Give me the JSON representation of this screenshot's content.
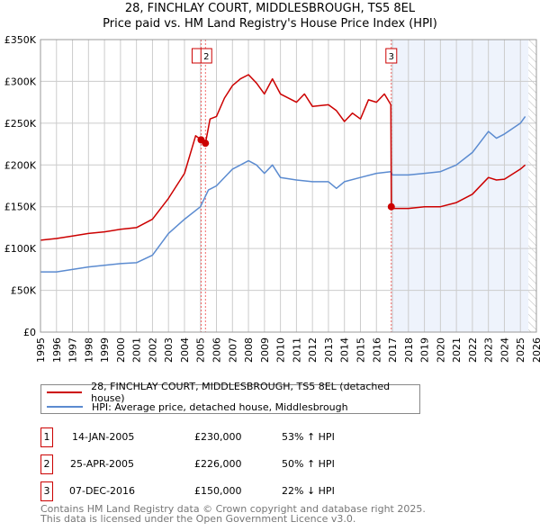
{
  "title_line1": "28, FINCHLAY COURT, MIDDLESBROUGH, TS5 8EL",
  "title_line2": "Price paid vs. HM Land Registry's House Price Index (HPI)",
  "chart_data": {
    "type": "line",
    "xlim": [
      1995,
      2026
    ],
    "ylim": [
      0,
      350000
    ],
    "yticks": [
      0,
      50000,
      100000,
      150000,
      200000,
      250000,
      300000,
      350000
    ],
    "ytick_labels": [
      "£0",
      "£50K",
      "£100K",
      "£150K",
      "£200K",
      "£250K",
      "£300K",
      "£350K"
    ],
    "xticks": [
      1995,
      1996,
      1997,
      1998,
      1999,
      2000,
      2001,
      2002,
      2003,
      2004,
      2005,
      2006,
      2007,
      2008,
      2009,
      2010,
      2011,
      2012,
      2013,
      2014,
      2015,
      2016,
      2017,
      2018,
      2019,
      2020,
      2021,
      2022,
      2023,
      2024,
      2025,
      2026
    ],
    "grid": true,
    "colors": {
      "property": "#cc0000",
      "hpi": "#5b8bd0",
      "shade": "#eef3fc"
    },
    "shaded_from": 2016.93,
    "hatched_from": 2025.5,
    "series": [
      {
        "name": "28, FINCHLAY COURT, MIDDLESBROUGH, TS5 8EL (detached house)",
        "key": "property",
        "x": [
          1995,
          1996,
          1997,
          1998,
          1999,
          2000,
          2001,
          2002,
          2003,
          2004,
          2004.7,
          2005.04,
          2005.31,
          2005.6,
          2006,
          2006.5,
          2007,
          2007.5,
          2008,
          2008.5,
          2009,
          2009.5,
          2010,
          2011,
          2011.5,
          2012,
          2013,
          2013.5,
          2014,
          2014.5,
          2015,
          2015.5,
          2016,
          2016.5,
          2016.9,
          2016.93,
          2017,
          2018,
          2019,
          2020,
          2021,
          2022,
          2023,
          2023.5,
          2024,
          2025,
          2025.3
        ],
        "y": [
          110000,
          112000,
          115000,
          118000,
          120000,
          123000,
          125000,
          135000,
          160000,
          190000,
          235000,
          230000,
          226000,
          255000,
          258000,
          280000,
          295000,
          303000,
          308000,
          298000,
          285000,
          303000,
          285000,
          275000,
          285000,
          270000,
          272000,
          265000,
          252000,
          262000,
          255000,
          278000,
          275000,
          285000,
          272000,
          150000,
          148000,
          148000,
          150000,
          150000,
          155000,
          165000,
          185000,
          182000,
          183000,
          195000,
          200000
        ]
      },
      {
        "name": "HPI: Average price, detached house, Middlesbrough",
        "key": "hpi",
        "x": [
          1995,
          1996,
          1997,
          1998,
          1999,
          2000,
          2001,
          2002,
          2003,
          2004,
          2005,
          2005.5,
          2006,
          2007,
          2007.5,
          2008,
          2008.5,
          2009,
          2009.5,
          2010,
          2011,
          2012,
          2013,
          2013.5,
          2014,
          2015,
          2016,
          2016.9,
          2017,
          2018,
          2019,
          2020,
          2021,
          2022,
          2023,
          2023.5,
          2024,
          2025,
          2025.3
        ],
        "y": [
          72000,
          72000,
          75000,
          78000,
          80000,
          82000,
          83000,
          92000,
          118000,
          135000,
          150000,
          170000,
          175000,
          195000,
          200000,
          205000,
          200000,
          190000,
          200000,
          185000,
          182000,
          180000,
          180000,
          172000,
          180000,
          185000,
          190000,
          192000,
          188000,
          188000,
          190000,
          192000,
          200000,
          215000,
          240000,
          232000,
          237000,
          250000,
          258000
        ]
      }
    ],
    "sales": [
      {
        "label": "1",
        "x": 2005.04,
        "y": 230000
      },
      {
        "label": "2",
        "x": 2005.31,
        "y": 226000
      },
      {
        "label": "3",
        "x": 2016.93,
        "y": 150000
      }
    ]
  },
  "legend": [
    "28, FINCHLAY COURT, MIDDLESBROUGH, TS5 8EL (detached house)",
    "HPI: Average price, detached house, Middlesbrough"
  ],
  "transactions": [
    {
      "num": "1",
      "date": "14-JAN-2005",
      "price": "£230,000",
      "hpi": "53% ↑ HPI"
    },
    {
      "num": "2",
      "date": "25-APR-2005",
      "price": "£226,000",
      "hpi": "50% ↑ HPI"
    },
    {
      "num": "3",
      "date": "07-DEC-2016",
      "price": "£150,000",
      "hpi": "22% ↓ HPI"
    }
  ],
  "footer_line1": "Contains HM Land Registry data © Crown copyright and database right 2025.",
  "footer_line2": "This data is licensed under the Open Government Licence v3.0."
}
